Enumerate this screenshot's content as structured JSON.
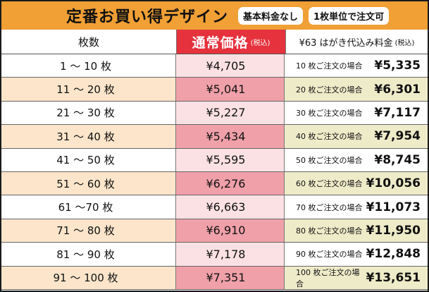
{
  "header": {
    "title": "定番お買い得デザイン",
    "badge_basic_fee": "基本料金なし",
    "badge_unit": "1枚単位で注文可"
  },
  "table": {
    "col_quantity": "枚数",
    "col_price_main": "通常価格",
    "col_price_tax": "(税込)",
    "col_postcard_main": "¥63 はがき代込み料金",
    "col_postcard_tax": "(税込)",
    "rows": [
      {
        "qty": "1 〜 10 枚",
        "price": "¥4,705",
        "order_label": "10 枚ご注文の場合",
        "total": "¥5,335"
      },
      {
        "qty": "11 〜 20 枚",
        "price": "¥5,041",
        "order_label": "20 枚ご注文の場合",
        "total": "¥6,301"
      },
      {
        "qty": "21 〜 30 枚",
        "price": "¥5,227",
        "order_label": "30 枚ご注文の場合",
        "total": "¥7,117"
      },
      {
        "qty": "31 〜 40 枚",
        "price": "¥5,434",
        "order_label": "40 枚ご注文の場合",
        "total": "¥7,954"
      },
      {
        "qty": "41 〜 50 枚",
        "price": "¥5,595",
        "order_label": "50 枚ご注文の場合",
        "total": "¥8,745"
      },
      {
        "qty": "51 〜 60 枚",
        "price": "¥6,276",
        "order_label": "60 枚ご注文の場合",
        "total": "¥10,056"
      },
      {
        "qty": "61 〜70 枚",
        "price": "¥6,663",
        "order_label": "70 枚ご注文の場合",
        "total": "¥11,073"
      },
      {
        "qty": "71 〜 80 枚",
        "price": "¥6,910",
        "order_label": "80 枚ご注文の場合",
        "total": "¥11,950"
      },
      {
        "qty": "81 〜 90 枚",
        "price": "¥7,178",
        "order_label": "90 枚ご注文の場合",
        "total": "¥12,848"
      },
      {
        "qty": "91 〜 100 枚",
        "price": "¥7,351",
        "order_label": "100 枚ご注文の場合",
        "total": "¥13,651"
      }
    ]
  },
  "colors": {
    "title_bar": "#f0a035",
    "price_header": "#e5323d",
    "row_alt_qty": "#fce5cb",
    "row_alt_price": "#efa0a9",
    "row_alt_total": "#eeebc9",
    "row_price_light": "#fbe1e4"
  }
}
